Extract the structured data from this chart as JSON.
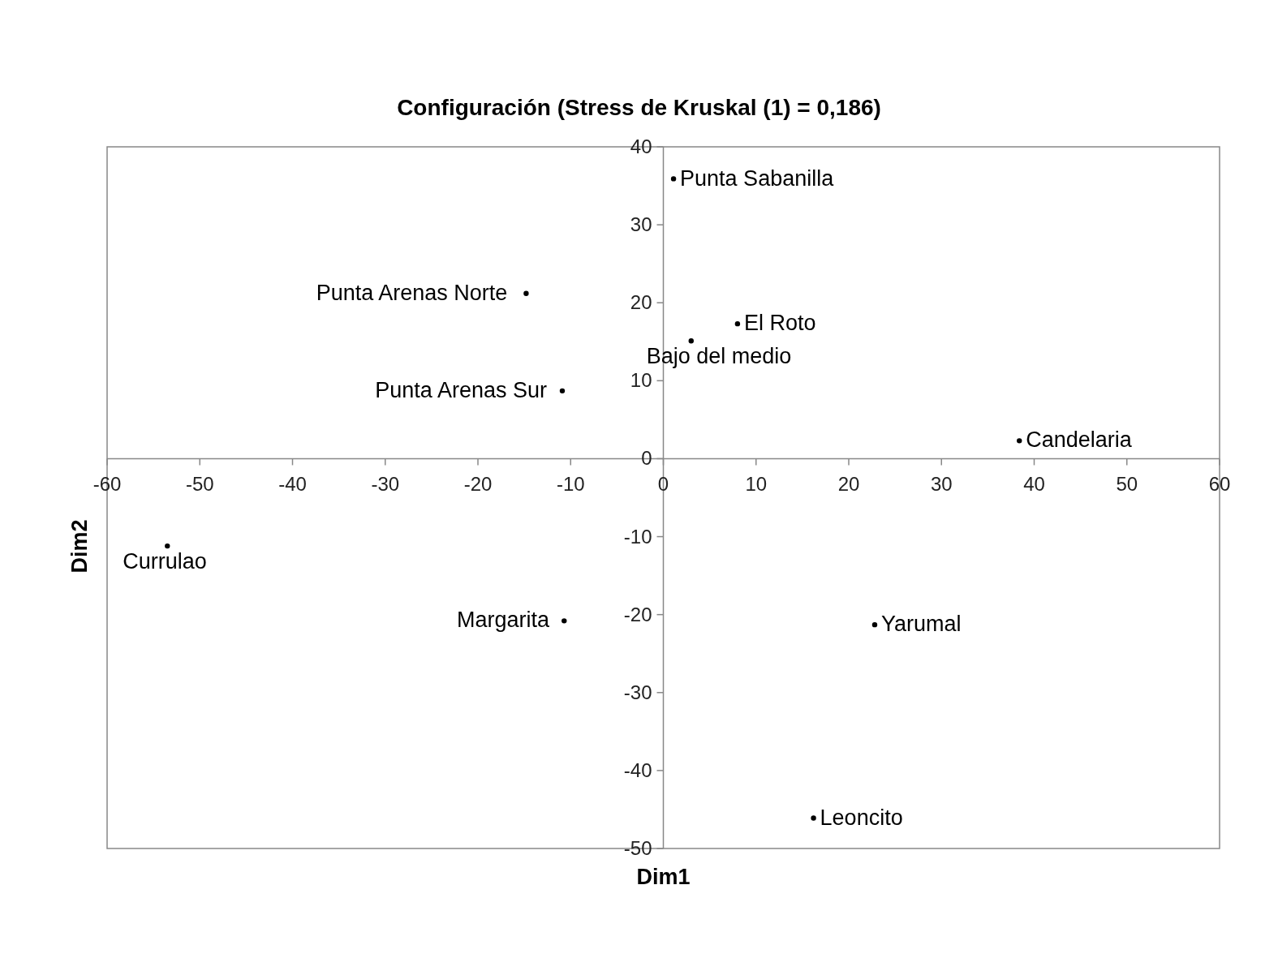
{
  "chart_data": {
    "type": "scatter",
    "title": "Configuración (Stress de Kruskal (1) = 0,186)",
    "xlabel": "Dim1",
    "ylabel": "Dim2",
    "xlim": [
      -60,
      60
    ],
    "xticks": [
      -60,
      -50,
      -40,
      -30,
      -20,
      -10,
      0,
      10,
      20,
      30,
      40,
      50,
      60
    ],
    "ylim": [
      -50,
      40
    ],
    "yticks": [
      -50,
      -40,
      -30,
      -20,
      -10,
      0,
      10,
      20,
      30,
      40
    ],
    "marker": "circle",
    "series": [
      {
        "color": "#000000",
        "x": [
          1.1,
          -14.8,
          8.0,
          3.0,
          -10.9,
          38.4,
          -53.5,
          -10.7,
          22.8,
          16.2
        ],
        "values": [
          35.9,
          21.2,
          17.3,
          15.1,
          8.7,
          2.3,
          -11.2,
          -20.8,
          -21.3,
          -46.1
        ]
      }
    ],
    "annotations": [
      {
        "text": "Punta Sabanilla",
        "x": 1.1,
        "y": 35.9
      },
      {
        "text": "Punta Arenas Norte",
        "x": -14.8,
        "y": 21.2
      },
      {
        "text": "El Roto",
        "x": 8.0,
        "y": 17.3
      },
      {
        "text": "Bajo del medio",
        "x": 3.0,
        "y": 15.1
      },
      {
        "text": "Punta Arenas Sur",
        "x": -10.9,
        "y": 8.7
      },
      {
        "text": "Candelaria",
        "x": 38.4,
        "y": 2.3
      },
      {
        "text": "Currulao",
        "x": -53.5,
        "y": -11.2
      },
      {
        "text": "Margarita",
        "x": -10.7,
        "y": -20.8
      },
      {
        "text": "Yarumal",
        "x": 22.8,
        "y": -21.3
      },
      {
        "text": "Leoncito",
        "x": 16.2,
        "y": -46.1
      }
    ]
  }
}
